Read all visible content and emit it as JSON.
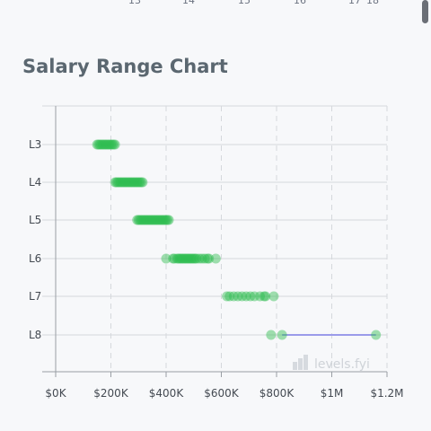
{
  "chart_title": "Salary Range Chart",
  "watermark": "levels.fyi",
  "colors": {
    "point": "#2ebd4f",
    "range_line": "#9b9bea",
    "grid": "#d5d8dc",
    "axis": "#999ea4"
  },
  "chart_data": {
    "type": "scatter",
    "title": "Salary Range Chart",
    "xlabel": "",
    "ylabel": "",
    "xlim": [
      0,
      1200000
    ],
    "x_ticks": [
      "$0K",
      "$200K",
      "$400K",
      "$600K",
      "$800K",
      "$1M",
      "$1.2M"
    ],
    "categories": [
      "L3",
      "L4",
      "L5",
      "L6",
      "L7",
      "L8"
    ],
    "grid": true,
    "series": [
      {
        "level": "L3",
        "values": [
          150000,
          155000,
          160000,
          165000,
          170000,
          175000,
          180000,
          185000,
          190000,
          195000,
          200000,
          205000,
          210000,
          215000
        ]
      },
      {
        "level": "L4",
        "values": [
          215000,
          220000,
          225000,
          230000,
          235000,
          240000,
          245000,
          250000,
          255000,
          260000,
          265000,
          270000,
          275000,
          280000,
          285000,
          290000,
          295000,
          300000,
          305000,
          310000,
          315000
        ]
      },
      {
        "level": "L5",
        "values": [
          295000,
          300000,
          305000,
          310000,
          315000,
          320000,
          325000,
          330000,
          335000,
          340000,
          345000,
          350000,
          355000,
          360000,
          365000,
          370000,
          375000,
          380000,
          385000,
          390000,
          395000,
          400000,
          405000,
          410000
        ]
      },
      {
        "level": "L6",
        "values": [
          400000,
          425000,
          430000,
          440000,
          445000,
          450000,
          455000,
          460000,
          465000,
          470000,
          475000,
          480000,
          485000,
          490000,
          495000,
          500000,
          505000,
          510000,
          520000,
          530000,
          540000,
          550000,
          555000,
          580000
        ]
      },
      {
        "level": "L7",
        "values": [
          620000,
          630000,
          645000,
          660000,
          675000,
          690000,
          705000,
          720000,
          740000,
          755000,
          760000,
          790000
        ]
      },
      {
        "level": "L8",
        "values": [
          780000,
          820000,
          1160000
        ],
        "range": [
          820000,
          1160000
        ]
      }
    ]
  }
}
